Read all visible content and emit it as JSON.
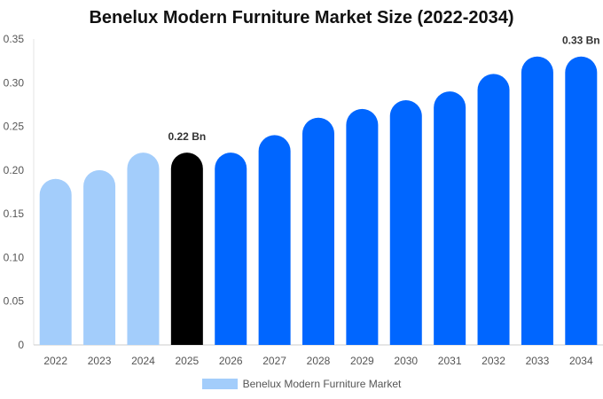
{
  "chart_data": {
    "type": "bar",
    "title": "Benelux Modern Furniture Market Size (2022-2034)",
    "categories": [
      "2022",
      "2023",
      "2024",
      "2025",
      "2026",
      "2027",
      "2028",
      "2029",
      "2030",
      "2031",
      "2032",
      "2033",
      "2034"
    ],
    "series": [
      {
        "name": "Benelux Modern Furniture Market",
        "values": [
          0.19,
          0.2,
          0.22,
          0.22,
          0.22,
          0.24,
          0.26,
          0.27,
          0.28,
          0.29,
          0.31,
          0.33,
          0.33
        ]
      }
    ],
    "ylim": [
      0,
      0.35
    ],
    "yticks": [
      "0",
      "0.05",
      "0.10",
      "0.15",
      "0.20",
      "0.25",
      "0.30",
      "0.35"
    ],
    "annotations": [
      {
        "category": "2025",
        "text": "0.22 Bn"
      },
      {
        "category": "2034",
        "text": "0.33 Bn"
      }
    ],
    "bar_colors": [
      "#a3cdfb",
      "#a3cdfb",
      "#a3cdfb",
      "#000000",
      "#0066ff",
      "#0066ff",
      "#0066ff",
      "#0066ff",
      "#0066ff",
      "#0066ff",
      "#0066ff",
      "#0066ff",
      "#0066ff"
    ],
    "legend_color": "#a3cdfb",
    "legend_position": "bottom-center",
    "grid": false
  }
}
